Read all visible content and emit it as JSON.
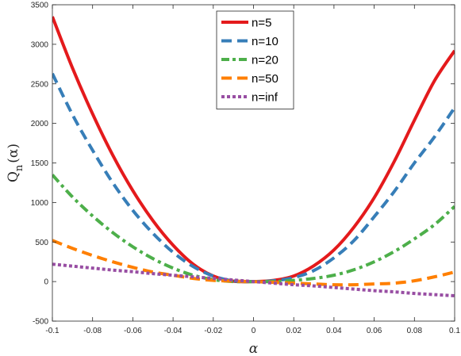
{
  "chart_data": {
    "type": "line",
    "xlabel": "α",
    "ylabel_main": "Q",
    "ylabel_sub": "n",
    "ylabel_arg": "(α)",
    "xlim": [
      -0.1,
      0.1
    ],
    "ylim": [
      -500,
      3500
    ],
    "xticks": [
      -0.1,
      -0.08,
      -0.06,
      -0.04,
      -0.02,
      0,
      0.02,
      0.04,
      0.06,
      0.08,
      0.1
    ],
    "xtick_labels": [
      "-0.1",
      "-0.08",
      "-0.06",
      "-0.04",
      "-0.02",
      "0",
      "0.02",
      "0.04",
      "0.06",
      "0.08",
      "0.1"
    ],
    "yticks": [
      -500,
      0,
      500,
      1000,
      1500,
      2000,
      2500,
      3000,
      3500
    ],
    "ytick_labels": [
      "-500",
      "0",
      "500",
      "1000",
      "1500",
      "2000",
      "2500",
      "3000",
      "3500"
    ],
    "grid": false,
    "legend_position": "top-center",
    "x": [
      -0.1,
      -0.09,
      -0.08,
      -0.07,
      -0.06,
      -0.05,
      -0.04,
      -0.03,
      -0.02,
      -0.01,
      0,
      0.01,
      0.02,
      0.03,
      0.04,
      0.05,
      0.06,
      0.07,
      0.08,
      0.09,
      0.1
    ],
    "series": [
      {
        "name": "n=5",
        "color": "#e41a1c",
        "style": "solid",
        "values": [
          3350,
          2700,
          2120,
          1600,
          1150,
          770,
          460,
          220,
          70,
          5,
          0,
          15,
          70,
          200,
          400,
          690,
          1060,
          1520,
          2040,
          2540,
          2920
        ]
      },
      {
        "name": "n=10",
        "color": "#377eb8",
        "style": "dashed",
        "values": [
          2630,
          2110,
          1660,
          1250,
          900,
          610,
          370,
          190,
          70,
          10,
          0,
          10,
          50,
          140,
          300,
          520,
          820,
          1140,
          1500,
          1830,
          2200
        ]
      },
      {
        "name": "n=20",
        "color": "#4daf4a",
        "style": "dashdot",
        "values": [
          1350,
          1070,
          830,
          620,
          440,
          290,
          170,
          80,
          25,
          0,
          0,
          0,
          15,
          40,
          80,
          150,
          250,
          380,
          540,
          720,
          950
        ]
      },
      {
        "name": "n=50",
        "color": "#ff7f00",
        "style": "dashed",
        "values": [
          520,
          420,
          330,
          250,
          180,
          120,
          80,
          40,
          15,
          5,
          0,
          -10,
          -20,
          -30,
          -40,
          -40,
          -30,
          -20,
          10,
          60,
          120
        ]
      },
      {
        "name": "n=inf",
        "color": "#984ea3",
        "style": "dotted",
        "values": [
          220,
          195,
          170,
          145,
          125,
          100,
          80,
          60,
          40,
          20,
          0,
          -20,
          -40,
          -55,
          -75,
          -95,
          -115,
          -130,
          -150,
          -165,
          -180
        ]
      }
    ]
  }
}
